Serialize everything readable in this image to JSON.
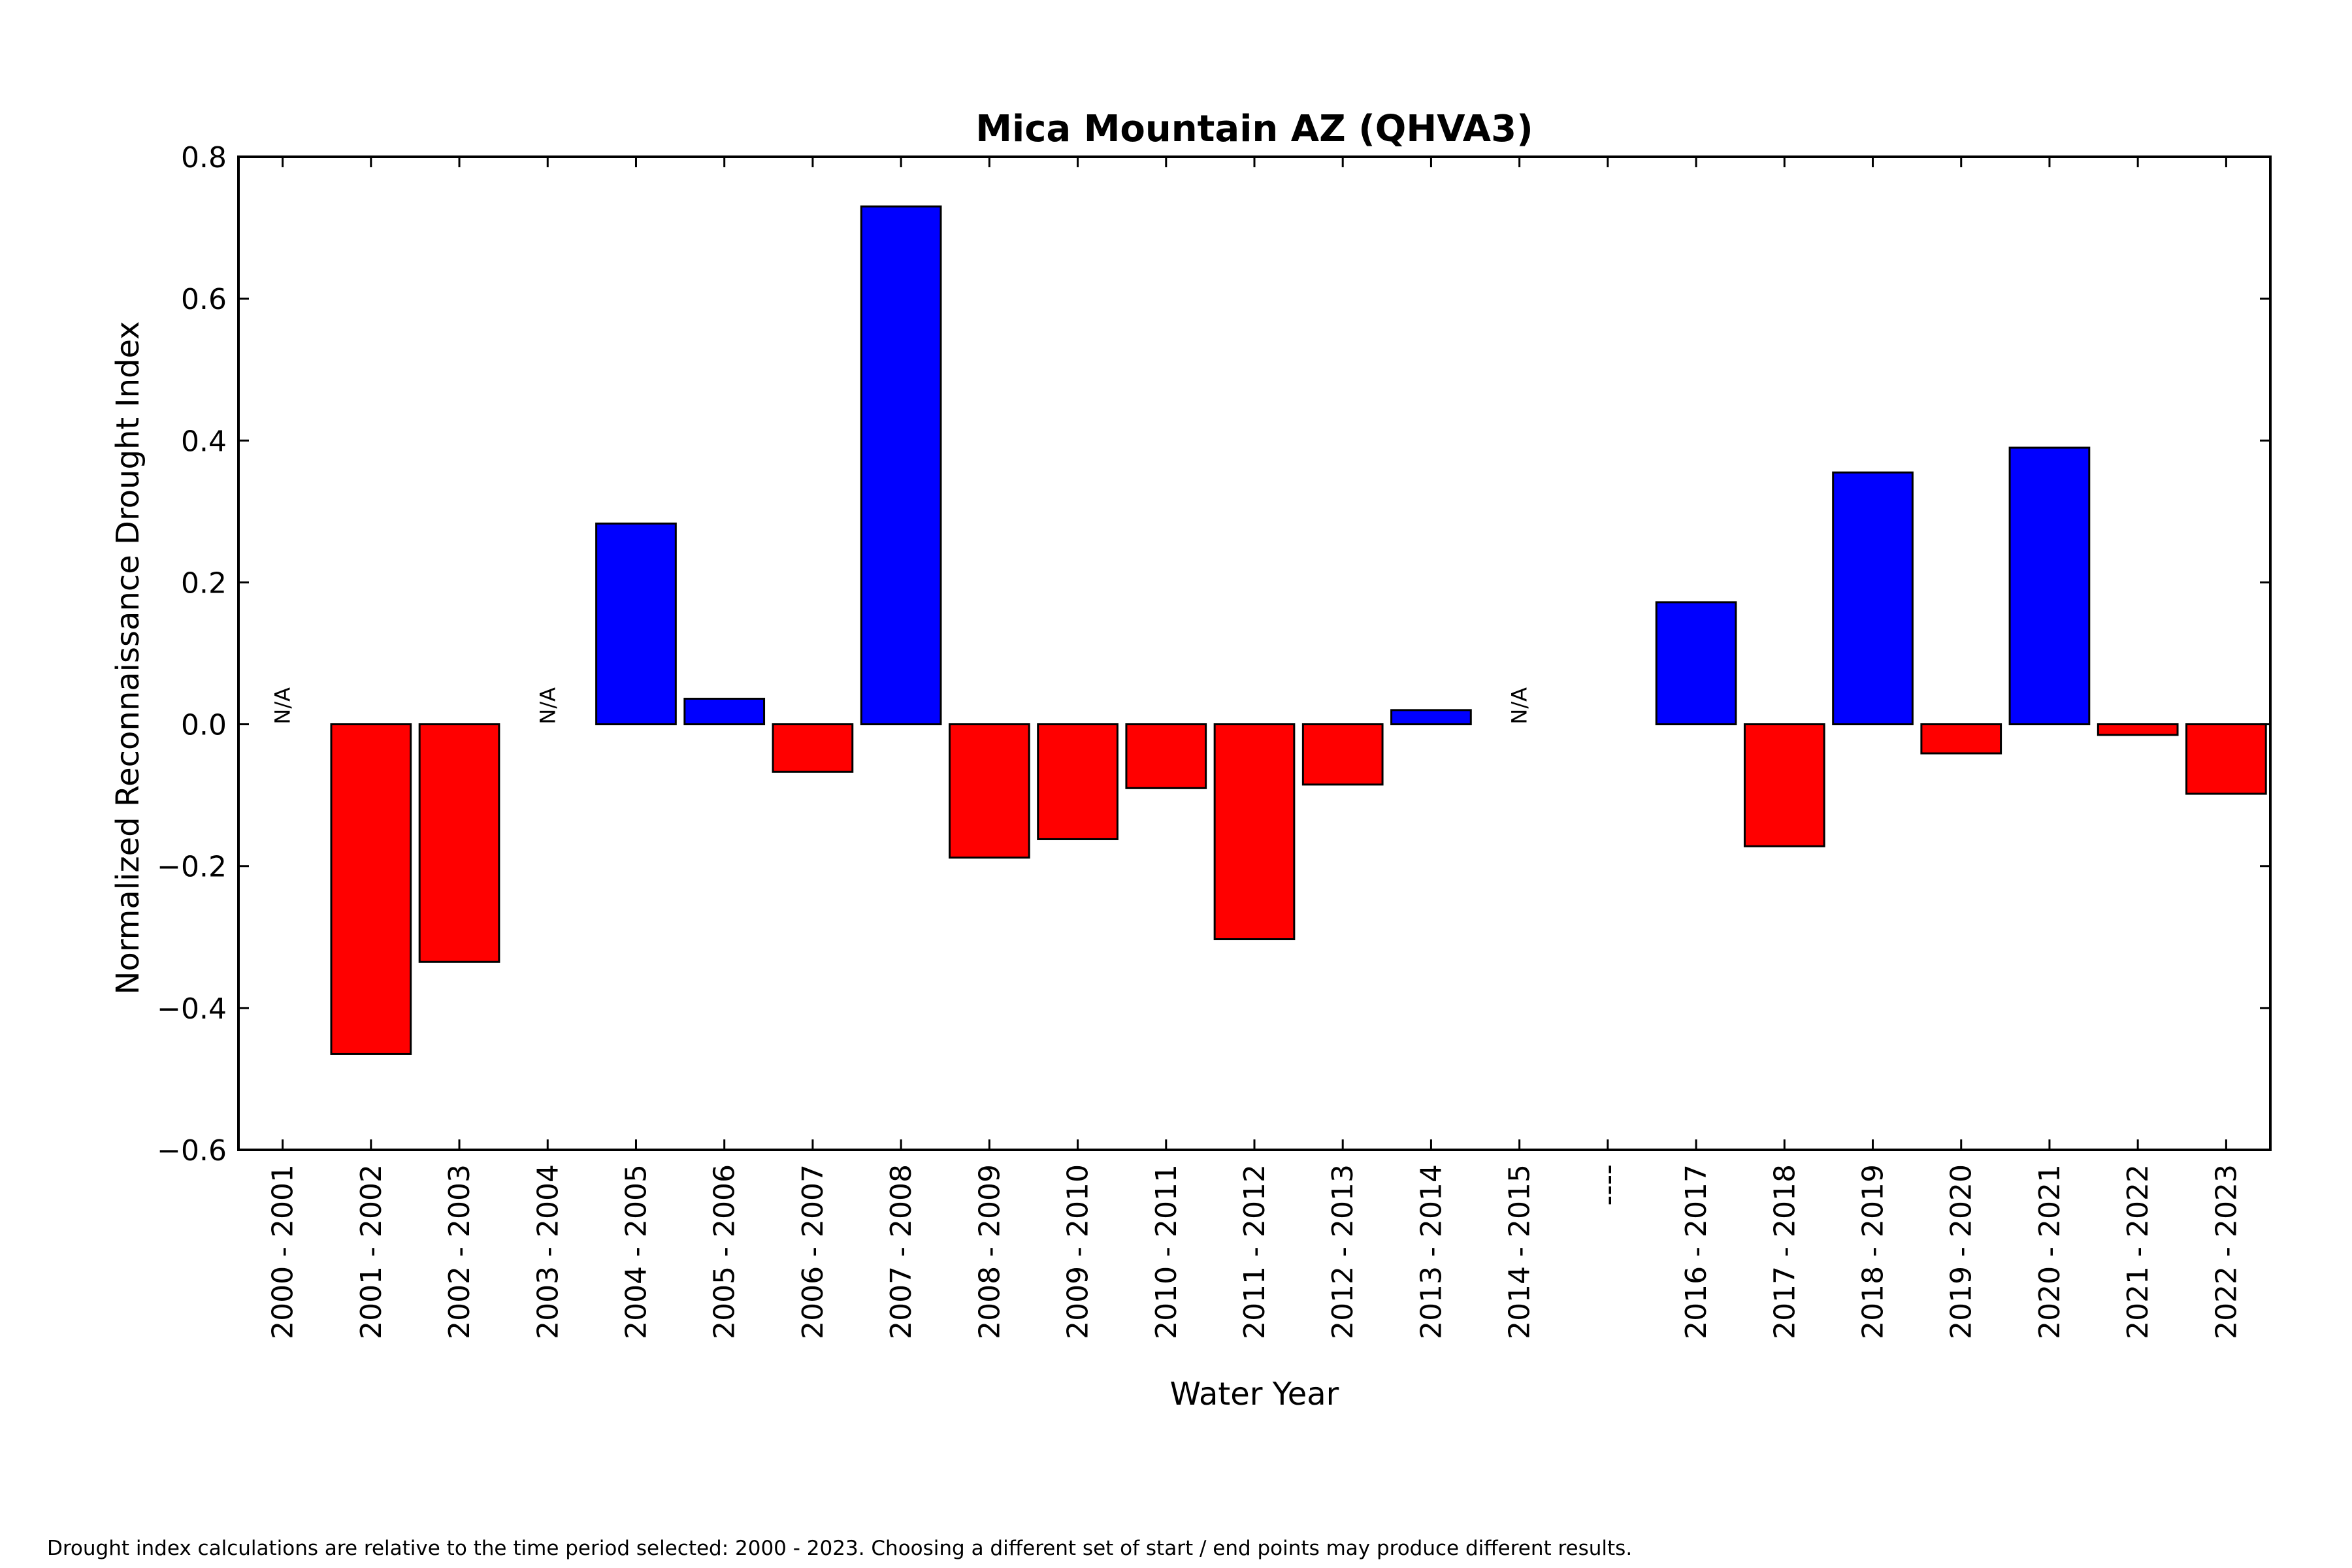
{
  "chart_data": {
    "type": "bar",
    "title": "Mica Mountain AZ (QHVA3)",
    "xlabel": "Water Year",
    "ylabel": "Normalized Reconnaissance Drought Index",
    "ylim": [
      -0.6,
      0.8
    ],
    "yticks": [
      -0.6,
      -0.4,
      -0.2,
      0.0,
      0.2,
      0.4,
      0.6,
      0.8
    ],
    "ytick_labels": [
      "−0.6",
      "−0.4",
      "−0.2",
      "0.0",
      "0.2",
      "0.4",
      "0.6",
      "0.8"
    ],
    "grid": false,
    "categories": [
      "2000 - 2001",
      "2001 - 2002",
      "2002 - 2003",
      "2003 - 2004",
      "2004 - 2005",
      "2005 - 2006",
      "2006 - 2007",
      "2007 - 2008",
      "2008 - 2009",
      "2009 - 2010",
      "2010 - 2011",
      "2011 - 2012",
      "2012 - 2013",
      "2013 - 2014",
      "2014 - 2015",
      "----",
      "2016 - 2017",
      "2017 - 2018",
      "2018 - 2019",
      "2019 - 2020",
      "2020 - 2021",
      "2021 - 2022",
      "2022 - 2023"
    ],
    "values": [
      null,
      -0.465,
      -0.335,
      null,
      0.283,
      0.036,
      -0.067,
      0.73,
      -0.188,
      -0.162,
      -0.09,
      -0.303,
      -0.085,
      0.02,
      null,
      null,
      0.172,
      -0.172,
      0.355,
      -0.041,
      0.39,
      -0.015,
      -0.098
    ],
    "na_label": "N/A",
    "na_marked": [
      true,
      false,
      false,
      true,
      false,
      false,
      false,
      false,
      false,
      false,
      false,
      false,
      false,
      false,
      true,
      true,
      false,
      false,
      false,
      false,
      false,
      false,
      false
    ],
    "colors": {
      "positive": "#0000ff",
      "negative": "#ff0000",
      "axis": "#000000"
    }
  },
  "footnote": "Drought index calculations are relative to the time period selected: 2000 - 2023. Choosing a different set of start / end points may produce different results."
}
